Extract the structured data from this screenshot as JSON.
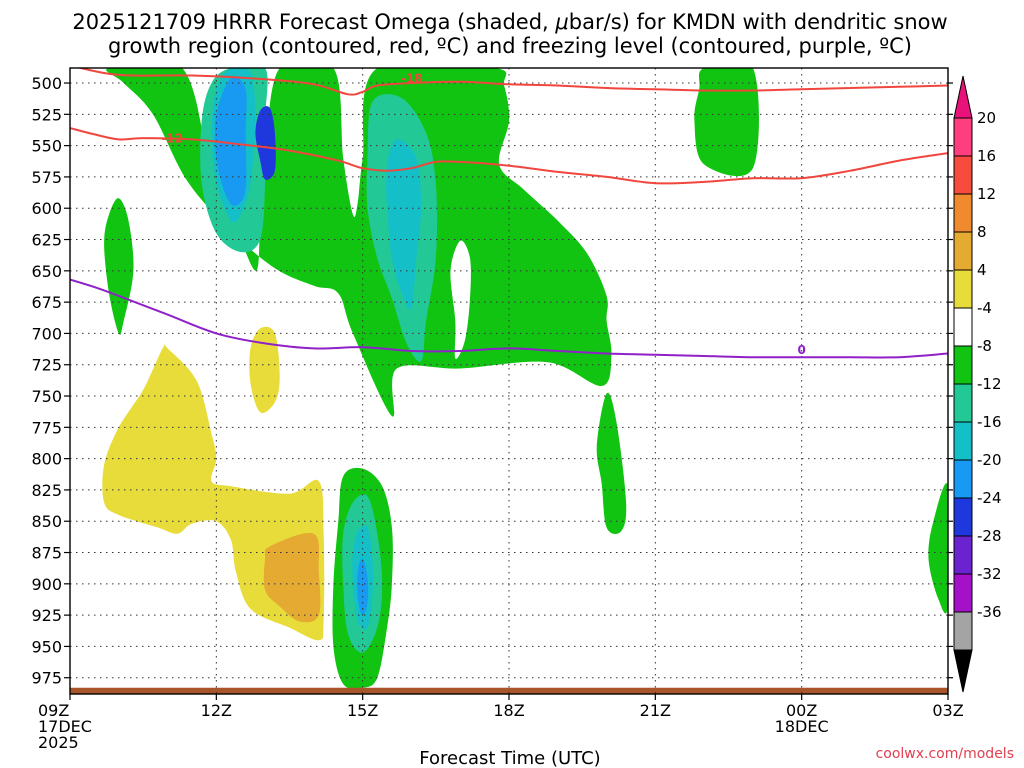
{
  "chart_data": {
    "type": "contour",
    "title_line1": "2025121709 HRRR Forecast Omega (shaded, ",
    "title_mu": "μ",
    "title_line1_end": "bar/s) for KMDN with dendritic snow",
    "title_line2": "growth region (contoured, red, ºC) and freezing level (contoured, purple, ºC)",
    "xlabel": "Forecast Time (UTC)",
    "credit": "coolwx.com/models",
    "x_hours_range": [
      0,
      18
    ],
    "y_pressure_range": [
      488,
      988
    ],
    "y_ticks": [
      500,
      525,
      550,
      575,
      600,
      625,
      650,
      675,
      700,
      725,
      750,
      775,
      800,
      825,
      850,
      875,
      900,
      925,
      950,
      975
    ],
    "x_ticks": [
      {
        "hour": 0,
        "lines": [
          "09Z",
          "17DEC",
          "2025"
        ]
      },
      {
        "hour": 3,
        "lines": [
          "12Z"
        ]
      },
      {
        "hour": 6,
        "lines": [
          "15Z"
        ]
      },
      {
        "hour": 9,
        "lines": [
          "18Z"
        ]
      },
      {
        "hour": 12,
        "lines": [
          "21Z"
        ]
      },
      {
        "hour": 15,
        "lines": [
          "00Z",
          "18DEC"
        ]
      },
      {
        "hour": 18,
        "lines": [
          "03Z"
        ]
      }
    ],
    "colorbar": {
      "labels": [
        "20",
        "16",
        "12",
        "8",
        "4",
        "-4",
        "-8",
        "-12",
        "-16",
        "-20",
        "-24",
        "-28",
        "-32",
        "-36"
      ],
      "bins": [
        {
          "color": "#ff3e80"
        },
        {
          "color": "#f74b3e"
        },
        {
          "color": "#ef8a2f"
        },
        {
          "color": "#e4aa31"
        },
        {
          "color": "#e8dc3a"
        },
        {
          "color": "#ffffff"
        },
        {
          "color": "#11c411"
        },
        {
          "color": "#22c996"
        },
        {
          "color": "#14bfc8"
        },
        {
          "color": "#1899f2"
        },
        {
          "color": "#1f38de"
        },
        {
          "color": "#6b22cf"
        },
        {
          "color": "#a511c8"
        },
        {
          "color": "#a4a4a4"
        }
      ],
      "top_arrow_color": "#e8127a",
      "bottom_arrow_color": "#000000"
    },
    "omega_regions": [
      {
        "color": "#11c411",
        "points": [
          [
            0.8,
            488
          ],
          [
            2.3,
            488
          ],
          [
            2.9,
            575
          ],
          [
            3.3,
            605
          ],
          [
            3.8,
            650
          ],
          [
            3.9,
            612
          ],
          [
            4.0,
            560
          ],
          [
            4.3,
            488
          ],
          [
            5.4,
            488
          ],
          [
            5.6,
            560
          ],
          [
            5.8,
            605
          ],
          [
            5.9,
            595
          ],
          [
            6.0,
            560
          ],
          [
            6.3,
            488
          ],
          [
            8.7,
            488
          ],
          [
            8.9,
            502
          ],
          [
            9.0,
            530
          ],
          [
            8.8,
            565
          ],
          [
            9.3,
            585
          ],
          [
            10.0,
            610
          ],
          [
            10.6,
            636
          ],
          [
            11.0,
            670
          ],
          [
            11.0,
            690
          ],
          [
            11.1,
            717
          ],
          [
            10.9,
            742
          ],
          [
            9.8,
            723
          ],
          [
            8.0,
            728
          ],
          [
            6.7,
            728
          ],
          [
            6.6,
            766
          ],
          [
            5.8,
            700
          ],
          [
            5.5,
            668
          ],
          [
            5.0,
            662
          ],
          [
            4.2,
            648
          ],
          [
            3.3,
            618
          ],
          [
            2.4,
            578
          ],
          [
            1.7,
            525
          ],
          [
            1.1,
            500
          ]
        ]
      },
      {
        "color": "#11c411",
        "points": [
          [
            1.0,
            592
          ],
          [
            1.2,
            610
          ],
          [
            1.3,
            650
          ],
          [
            1.1,
            690
          ],
          [
            1.0,
            700
          ],
          [
            0.8,
            668
          ],
          [
            0.7,
            628
          ],
          [
            0.8,
            605
          ]
        ]
      },
      {
        "color": "#11c411",
        "points": [
          [
            5.6,
            814
          ],
          [
            6.0,
            808
          ],
          [
            6.4,
            822
          ],
          [
            6.6,
            855
          ],
          [
            6.6,
            900
          ],
          [
            6.5,
            935
          ],
          [
            6.3,
            975
          ],
          [
            6.0,
            983
          ],
          [
            5.6,
            980
          ],
          [
            5.4,
            950
          ],
          [
            5.4,
            900
          ],
          [
            5.5,
            850
          ]
        ]
      },
      {
        "color": "#11c411",
        "points": [
          [
            13.0,
            488
          ],
          [
            14.0,
            488
          ],
          [
            14.0,
            568
          ],
          [
            13.0,
            565
          ],
          [
            12.8,
            530
          ],
          [
            12.9,
            505
          ]
        ]
      },
      {
        "color": "#11c411",
        "points": [
          [
            11.0,
            748
          ],
          [
            11.2,
            770
          ],
          [
            11.4,
            835
          ],
          [
            11.3,
            858
          ],
          [
            11.0,
            855
          ],
          [
            10.9,
            820
          ],
          [
            10.8,
            790
          ]
        ]
      },
      {
        "color": "#11c411",
        "points": [
          [
            18.0,
            822
          ],
          [
            18.0,
            917
          ],
          [
            17.8,
            912
          ],
          [
            17.6,
            880
          ],
          [
            17.7,
            850
          ]
        ]
      },
      {
        "color": "#ffffff",
        "points": [
          [
            8.0,
            626
          ],
          [
            8.2,
            640
          ],
          [
            8.2,
            672
          ],
          [
            8.1,
            705
          ],
          [
            7.9,
            720
          ],
          [
            7.9,
            690
          ],
          [
            7.8,
            650
          ]
        ]
      },
      {
        "color": "#22c996",
        "points": [
          [
            3.3,
            488
          ],
          [
            4.0,
            488
          ],
          [
            4.0,
            530
          ],
          [
            4.0,
            580
          ],
          [
            3.9,
            625
          ],
          [
            3.5,
            635
          ],
          [
            3.0,
            620
          ],
          [
            2.7,
            580
          ],
          [
            2.7,
            530
          ],
          [
            2.9,
            500
          ]
        ]
      },
      {
        "color": "#22c996",
        "points": [
          [
            6.2,
            515
          ],
          [
            6.8,
            512
          ],
          [
            7.3,
            540
          ],
          [
            7.5,
            580
          ],
          [
            7.5,
            640
          ],
          [
            7.3,
            690
          ],
          [
            7.2,
            722
          ],
          [
            6.9,
            708
          ],
          [
            6.6,
            672
          ],
          [
            6.3,
            640
          ],
          [
            6.1,
            600
          ],
          [
            6.1,
            560
          ]
        ]
      },
      {
        "color": "#22c996",
        "points": [
          [
            5.8,
            835
          ],
          [
            6.1,
            830
          ],
          [
            6.3,
            860
          ],
          [
            6.4,
            900
          ],
          [
            6.3,
            935
          ],
          [
            6.0,
            955
          ],
          [
            5.7,
            940
          ],
          [
            5.6,
            900
          ],
          [
            5.6,
            860
          ]
        ]
      },
      {
        "color": "#14bfc8",
        "points": [
          [
            3.3,
            488
          ],
          [
            3.7,
            492
          ],
          [
            3.8,
            530
          ],
          [
            3.7,
            580
          ],
          [
            3.5,
            605
          ],
          [
            3.3,
            610
          ],
          [
            3.0,
            580
          ],
          [
            2.9,
            540
          ],
          [
            3.0,
            505
          ]
        ]
      },
      {
        "color": "#14bfc8",
        "points": [
          [
            6.7,
            545
          ],
          [
            7.1,
            560
          ],
          [
            7.2,
            600
          ],
          [
            7.1,
            640
          ],
          [
            7.0,
            680
          ],
          [
            6.8,
            668
          ],
          [
            6.6,
            640
          ],
          [
            6.5,
            600
          ],
          [
            6.5,
            565
          ]
        ]
      },
      {
        "color": "#14bfc8",
        "points": [
          [
            5.9,
            858
          ],
          [
            6.1,
            855
          ],
          [
            6.2,
            880
          ],
          [
            6.2,
            910
          ],
          [
            6.1,
            935
          ],
          [
            5.9,
            930
          ],
          [
            5.8,
            900
          ],
          [
            5.8,
            875
          ]
        ]
      },
      {
        "color": "#1899f2",
        "points": [
          [
            3.3,
            496
          ],
          [
            3.6,
            505
          ],
          [
            3.6,
            540
          ],
          [
            3.6,
            585
          ],
          [
            3.4,
            598
          ],
          [
            3.2,
            590
          ],
          [
            3.0,
            560
          ],
          [
            3.0,
            525
          ]
        ]
      },
      {
        "color": "#1899f2",
        "points": [
          [
            6.0,
            880
          ],
          [
            6.1,
            895
          ],
          [
            6.1,
            915
          ],
          [
            6.0,
            925
          ],
          [
            5.9,
            912
          ],
          [
            5.9,
            890
          ]
        ]
      },
      {
        "color": "#1f38de",
        "points": [
          [
            3.9,
            522
          ],
          [
            4.1,
            520
          ],
          [
            4.2,
            540
          ],
          [
            4.2,
            570
          ],
          [
            4.0,
            577
          ],
          [
            3.9,
            562
          ],
          [
            3.8,
            540
          ]
        ]
      },
      {
        "color": "#e8dc3a",
        "points": [
          [
            2.0,
            712
          ],
          [
            2.6,
            738
          ],
          [
            2.9,
            780
          ],
          [
            3.0,
            800
          ],
          [
            2.9,
            818
          ],
          [
            3.3,
            822
          ],
          [
            4.5,
            828
          ],
          [
            5.1,
            818
          ],
          [
            5.2,
            860
          ],
          [
            5.2,
            930
          ],
          [
            5.1,
            945
          ],
          [
            4.5,
            935
          ],
          [
            3.7,
            920
          ],
          [
            3.4,
            890
          ],
          [
            3.3,
            865
          ],
          [
            3.0,
            850
          ],
          [
            2.5,
            852
          ],
          [
            2.2,
            860
          ],
          [
            1.8,
            855
          ],
          [
            1.0,
            845
          ],
          [
            0.7,
            835
          ],
          [
            0.7,
            805
          ],
          [
            1.0,
            775
          ],
          [
            1.5,
            745
          ],
          [
            1.9,
            712
          ]
        ]
      },
      {
        "color": "#e8dc3a",
        "points": [
          [
            3.9,
            696
          ],
          [
            4.2,
            700
          ],
          [
            4.3,
            735
          ],
          [
            4.2,
            755
          ],
          [
            3.9,
            763
          ],
          [
            3.7,
            740
          ],
          [
            3.7,
            712
          ]
        ]
      },
      {
        "color": "#e4aa31",
        "points": [
          [
            4.1,
            870
          ],
          [
            5.0,
            860
          ],
          [
            5.1,
            890
          ],
          [
            5.1,
            925
          ],
          [
            4.7,
            930
          ],
          [
            4.3,
            918
          ],
          [
            4.0,
            905
          ],
          [
            4.0,
            880
          ]
        ]
      }
    ],
    "ground_band": {
      "color": "#a8552b",
      "top_pressure": 983
    },
    "dendritic_contours": [
      {
        "label": "-18",
        "color": "#f0463e",
        "label_at": [
          7.0,
          496
        ],
        "points": [
          [
            0,
            486
          ],
          [
            0.7,
            492
          ],
          [
            1.3,
            494
          ],
          [
            2.5,
            494
          ],
          [
            4.0,
            497
          ],
          [
            5.0,
            501
          ],
          [
            5.7,
            509
          ],
          [
            6.0,
            507
          ],
          [
            6.3,
            502
          ],
          [
            7.0,
            500
          ],
          [
            8.0,
            499
          ],
          [
            9.0,
            501
          ],
          [
            10.0,
            502
          ],
          [
            11.0,
            504
          ],
          [
            12.0,
            505
          ],
          [
            13.0,
            506
          ],
          [
            14.0,
            506
          ],
          [
            15.0,
            505
          ],
          [
            16.0,
            504
          ],
          [
            17.0,
            503
          ],
          [
            18.0,
            502
          ]
        ]
      },
      {
        "label": "-12",
        "color": "#f0463e",
        "label_at": [
          2.1,
          544
        ],
        "points": [
          [
            0,
            536
          ],
          [
            0.5,
            541
          ],
          [
            1.0,
            545
          ],
          [
            1.5,
            544
          ],
          [
            2.5,
            545
          ],
          [
            3.5,
            549
          ],
          [
            4.5,
            554
          ],
          [
            5.5,
            562
          ],
          [
            6.0,
            568
          ],
          [
            6.5,
            570
          ],
          [
            7.0,
            568
          ],
          [
            7.5,
            563
          ],
          [
            8.0,
            563
          ],
          [
            9.0,
            566
          ],
          [
            10.0,
            571
          ],
          [
            11.0,
            575
          ],
          [
            12.0,
            580
          ],
          [
            13.0,
            579
          ],
          [
            14.0,
            576
          ],
          [
            15.0,
            576
          ],
          [
            16.0,
            570
          ],
          [
            17.0,
            562
          ],
          [
            18.0,
            556
          ]
        ]
      }
    ],
    "freezing_contours": [
      {
        "label": "0",
        "color": "#9020c8",
        "label_at": [
          15.0,
          713
        ],
        "points": [
          [
            0,
            657
          ],
          [
            0.5,
            663
          ],
          [
            1.0,
            670
          ],
          [
            2.0,
            685
          ],
          [
            3.0,
            700
          ],
          [
            4.0,
            708
          ],
          [
            5.0,
            712
          ],
          [
            6.0,
            711
          ],
          [
            7.0,
            714
          ],
          [
            8.0,
            714
          ],
          [
            9.0,
            712
          ],
          [
            10.0,
            714
          ],
          [
            11.0,
            716
          ],
          [
            12.0,
            717
          ],
          [
            13.0,
            718
          ],
          [
            14.0,
            719
          ],
          [
            15.0,
            719
          ],
          [
            16.0,
            719
          ],
          [
            17.0,
            719
          ],
          [
            18.0,
            716
          ]
        ]
      }
    ]
  }
}
